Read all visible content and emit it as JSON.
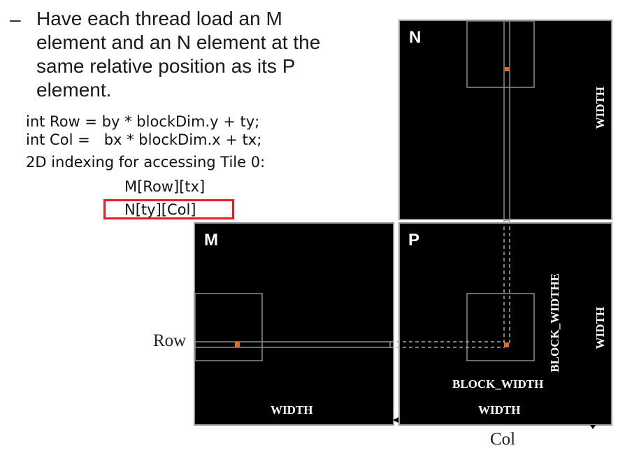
{
  "bullet": {
    "dash": "–",
    "lines": [
      "Have each thread load an M",
      "element and an N element at the",
      "same relative position as its P",
      "element."
    ]
  },
  "code": {
    "row_line": "int Row = by * blockDim.y + ty;",
    "col_line": "int Col =   bx * blockDim.x + tx;",
    "indexing_label": "2D indexing for accessing Tile 0:",
    "m_index": "M[Row][tx]",
    "n_index": "N[ty][Col]"
  },
  "matrices": {
    "n": {
      "label": "N",
      "side_label": "WIDTH"
    },
    "m": {
      "label": "M",
      "bottom_label": "WIDTH",
      "row_label": "Row"
    },
    "p": {
      "label": "P",
      "block_width_label": "BLOCK_WIDTH",
      "block_widthe_label": "BLOCK_WIDTHE",
      "bottom_label": "WIDTH",
      "side_label": "WIDTH",
      "col_label": "Col"
    }
  },
  "colors": {
    "highlight": "#e41e26",
    "element": "#e86a1f",
    "matrix_bg": "#000000",
    "outline": "#9a9a9a"
  }
}
